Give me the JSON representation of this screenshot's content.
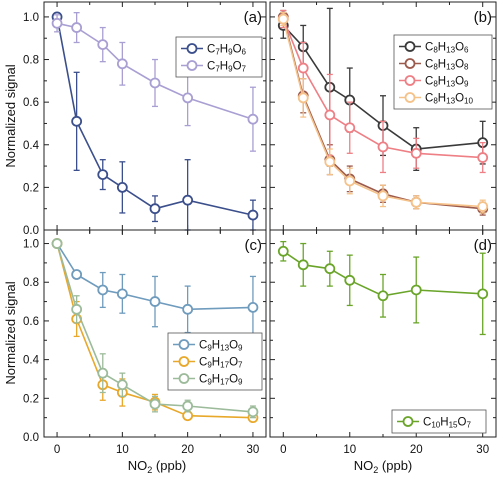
{
  "chart_data": {
    "type": "line",
    "x_ticks": [
      0,
      5,
      10,
      15,
      20,
      25,
      30
    ],
    "x_tick_labels": [
      "0",
      "10",
      "20",
      "30"
    ],
    "x_tick_label_values": [
      0,
      10,
      20,
      30
    ],
    "y_tick_labels": [
      "0.0",
      "0.2",
      "0.4",
      "0.6",
      "0.8",
      "1.0"
    ],
    "y_tick_label_values": [
      0,
      0.2,
      0.4,
      0.6,
      0.8,
      1.0
    ],
    "xlim": [
      -2,
      32
    ],
    "ylim": [
      0,
      1.07
    ],
    "xlabel_parts": [
      {
        "t": "NO"
      },
      {
        "t": "2",
        "sub": true
      },
      {
        "t": " (ppb)"
      }
    ],
    "ylabel": "Normalized signal",
    "panels": [
      {
        "label": "(a)",
        "legend_position": "top-right",
        "series": [
          {
            "name_parts": [
              {
                "t": "C"
              },
              {
                "t": "7",
                "sub": true
              },
              {
                "t": "H"
              },
              {
                "t": "9",
                "sub": true
              },
              {
                "t": "O"
              },
              {
                "t": "6",
                "sub": true
              }
            ],
            "color": "#3b4f8c",
            "x": [
              0,
              3,
              7,
              10,
              15,
              20,
              30
            ],
            "y": [
              1.0,
              0.51,
              0.26,
              0.2,
              0.1,
              0.14,
              0.07
            ],
            "err": [
              0.01,
              0.23,
              0.07,
              0.12,
              0.06,
              0.19,
              0.07
            ]
          },
          {
            "name_parts": [
              {
                "t": "C"
              },
              {
                "t": "7",
                "sub": true
              },
              {
                "t": "H"
              },
              {
                "t": "9",
                "sub": true
              },
              {
                "t": "O"
              },
              {
                "t": "7",
                "sub": true
              }
            ],
            "color": "#a99fd3",
            "x": [
              0,
              3,
              7,
              10,
              15,
              20,
              30
            ],
            "y": [
              0.97,
              0.95,
              0.87,
              0.78,
              0.69,
              0.62,
              0.52
            ],
            "err": [
              0.04,
              0.07,
              0.08,
              0.1,
              0.11,
              0.13,
              0.15
            ]
          }
        ]
      },
      {
        "label": "(b)",
        "legend_position": "top-right",
        "series": [
          {
            "name_parts": [
              {
                "t": "C"
              },
              {
                "t": "8",
                "sub": true
              },
              {
                "t": "H"
              },
              {
                "t": "13",
                "sub": true
              },
              {
                "t": "O"
              },
              {
                "t": "6",
                "sub": true
              }
            ],
            "color": "#3a3a3a",
            "x": [
              0,
              3,
              7,
              10,
              15,
              20,
              30
            ],
            "y": [
              0.96,
              0.86,
              0.67,
              0.61,
              0.49,
              0.38,
              0.41
            ],
            "err": [
              0.06,
              0.1,
              0.37,
              0.15,
              0.14,
              0.1,
              0.1
            ]
          },
          {
            "name_parts": [
              {
                "t": "C"
              },
              {
                "t": "8",
                "sub": true
              },
              {
                "t": "H"
              },
              {
                "t": "13",
                "sub": true
              },
              {
                "t": "O"
              },
              {
                "t": "8",
                "sub": true
              }
            ],
            "color": "#9c5a4c",
            "x": [
              0,
              3,
              7,
              10,
              15,
              20,
              30
            ],
            "y": [
              1.0,
              0.63,
              0.33,
              0.24,
              0.17,
              0.13,
              0.1
            ],
            "err": [
              0.03,
              0.08,
              0.07,
              0.06,
              0.04,
              0.03,
              0.03
            ]
          },
          {
            "name_parts": [
              {
                "t": "C"
              },
              {
                "t": "8",
                "sub": true
              },
              {
                "t": "H"
              },
              {
                "t": "13",
                "sub": true
              },
              {
                "t": "O"
              },
              {
                "t": "9",
                "sub": true
              }
            ],
            "color": "#ee7f85",
            "x": [
              0,
              3,
              7,
              10,
              15,
              20,
              30
            ],
            "y": [
              0.99,
              0.76,
              0.54,
              0.48,
              0.39,
              0.36,
              0.34
            ],
            "err": [
              0.04,
              0.12,
              0.19,
              0.12,
              0.12,
              0.07,
              0.07
            ]
          },
          {
            "name_parts": [
              {
                "t": "C"
              },
              {
                "t": "8",
                "sub": true
              },
              {
                "t": "H"
              },
              {
                "t": "13",
                "sub": true
              },
              {
                "t": "O"
              },
              {
                "t": "10",
                "sub": true
              }
            ],
            "color": "#f5c28a",
            "x": [
              0,
              3,
              7,
              10,
              15,
              20,
              30
            ],
            "y": [
              0.99,
              0.62,
              0.32,
              0.23,
              0.16,
              0.13,
              0.11
            ],
            "err": [
              0.03,
              0.09,
              0.06,
              0.06,
              0.05,
              0.03,
              0.03
            ]
          }
        ]
      },
      {
        "label": "(c)",
        "legend_position": "center-right",
        "series": [
          {
            "name_parts": [
              {
                "t": "C"
              },
              {
                "t": "9",
                "sub": true
              },
              {
                "t": "H"
              },
              {
                "t": "13",
                "sub": true
              },
              {
                "t": "O"
              },
              {
                "t": "9",
                "sub": true
              }
            ],
            "color": "#6f9bbd",
            "x": [
              0,
              3,
              7,
              10,
              15,
              20,
              30
            ],
            "y": [
              1.0,
              0.84,
              0.76,
              0.74,
              0.7,
              0.66,
              0.67
            ],
            "err": [
              0.01,
              0.01,
              0.09,
              0.1,
              0.13,
              0.12,
              0.16
            ]
          },
          {
            "name_parts": [
              {
                "t": "C"
              },
              {
                "t": "9",
                "sub": true
              },
              {
                "t": "H"
              },
              {
                "t": "17",
                "sub": true
              },
              {
                "t": "O"
              },
              {
                "t": "7",
                "sub": true
              }
            ],
            "color": "#e8a82a",
            "x": [
              0,
              3,
              7,
              10,
              15,
              20,
              30
            ],
            "y": [
              1.0,
              0.61,
              0.27,
              0.23,
              0.18,
              0.11,
              0.1
            ],
            "err": [
              0.01,
              0.09,
              0.08,
              0.07,
              0.04,
              0.02,
              0.02
            ]
          },
          {
            "name_parts": [
              {
                "t": "C"
              },
              {
                "t": "9",
                "sub": true
              },
              {
                "t": "H"
              },
              {
                "t": "17",
                "sub": true
              },
              {
                "t": "O"
              },
              {
                "t": "9",
                "sub": true
              }
            ],
            "color": "#9cbb9a",
            "x": [
              0,
              3,
              7,
              10,
              15,
              20,
              30
            ],
            "y": [
              1.0,
              0.66,
              0.33,
              0.27,
              0.17,
              0.16,
              0.13
            ],
            "err": [
              0.01,
              0.07,
              0.1,
              0.06,
              0.04,
              0.03,
              0.03
            ]
          }
        ]
      },
      {
        "label": "(d)",
        "legend_position": "bottom-right",
        "series": [
          {
            "name_parts": [
              {
                "t": "C"
              },
              {
                "t": "10",
                "sub": true
              },
              {
                "t": "H"
              },
              {
                "t": "15",
                "sub": true
              },
              {
                "t": "O"
              },
              {
                "t": "7",
                "sub": true
              }
            ],
            "color": "#6aa52a",
            "x": [
              0,
              3,
              7,
              10,
              15,
              20,
              30
            ],
            "y": [
              0.96,
              0.89,
              0.87,
              0.81,
              0.73,
              0.76,
              0.74
            ],
            "err": [
              0.05,
              0.11,
              0.09,
              0.13,
              0.11,
              0.17,
              0.21
            ]
          }
        ]
      }
    ]
  }
}
